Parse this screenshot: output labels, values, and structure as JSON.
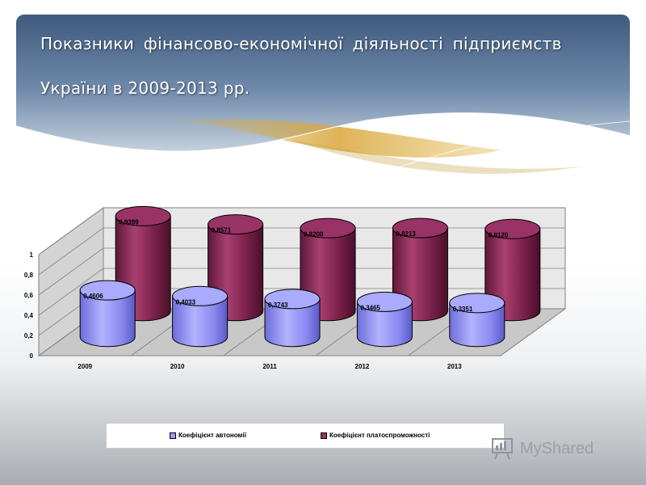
{
  "slide": {
    "title_line1": "Показники фінансово-економічної діяльності підприємств",
    "title_line2": "України в 2009-2013 рр.",
    "watermark": "MyShared"
  },
  "colors": {
    "autonomy": "#9999ff",
    "solvency": "#993366",
    "header": "#4a6587"
  },
  "chart_data": {
    "type": "bar",
    "style": "3d-cylinder",
    "categories": [
      "2009",
      "2010",
      "2011",
      "2012",
      "2013"
    ],
    "series": [
      {
        "name": "Коефіцієнт автономії",
        "values": [
          0.4606,
          0.4033,
          0.3743,
          0.3465,
          0.3351
        ],
        "labels": [
          "0,4606",
          "0,4033",
          "0,3743",
          "0,3465",
          "0,3351"
        ]
      },
      {
        "name": "Коефіцієнт платоспроможності",
        "values": [
          0.9399,
          0.8571,
          0.82,
          0.8213,
          0.812
        ],
        "labels": [
          "0,9399",
          "0,8571",
          "0,8200",
          "0,8213",
          "0,8120"
        ]
      }
    ],
    "yticks": [
      "0",
      "0,2",
      "0,4",
      "0,6",
      "0,8",
      "1"
    ],
    "ylim": [
      0,
      1
    ],
    "grid": true,
    "legend_position": "bottom"
  }
}
